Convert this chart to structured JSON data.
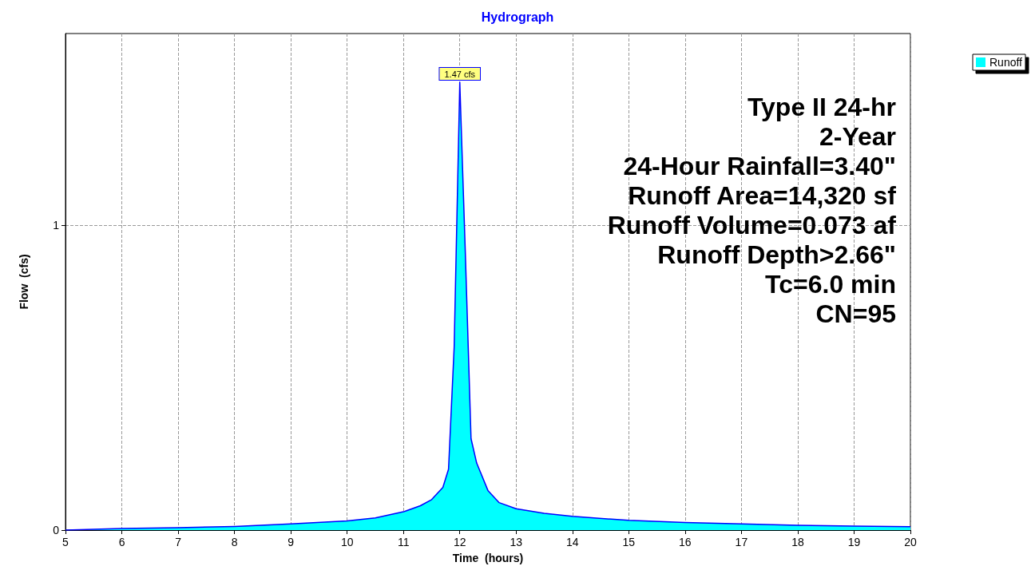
{
  "chart_data": {
    "type": "area",
    "title": "Hydrograph",
    "xlabel": "Time  (hours)",
    "ylabel": "Flow  (cfs)",
    "x": [
      5,
      6,
      7,
      8,
      9,
      10,
      10.5,
      11,
      11.3,
      11.5,
      11.7,
      11.8,
      11.9,
      12,
      12.1,
      12.2,
      12.3,
      12.5,
      12.7,
      13,
      13.5,
      14,
      15,
      16,
      17,
      18,
      19,
      20
    ],
    "series": [
      {
        "name": "Runoff",
        "color": "#00ffff",
        "values": [
          0.0,
          0.005,
          0.008,
          0.012,
          0.02,
          0.03,
          0.04,
          0.06,
          0.08,
          0.1,
          0.14,
          0.2,
          0.6,
          1.47,
          0.9,
          0.3,
          0.22,
          0.13,
          0.09,
          0.07,
          0.055,
          0.045,
          0.032,
          0.025,
          0.02,
          0.016,
          0.013,
          0.011
        ]
      }
    ],
    "xlim": [
      5,
      20
    ],
    "xticks": [
      5,
      6,
      7,
      8,
      9,
      10,
      11,
      12,
      13,
      14,
      15,
      16,
      17,
      18,
      19,
      20
    ],
    "ylim": [
      0,
      1.63
    ],
    "yticks": [
      0,
      1
    ],
    "grid": true,
    "legend": "top right",
    "marker": "none",
    "annotations": [
      {
        "text": "1.47 cfs",
        "x": 12,
        "y": 1.47
      },
      "Type II 24-hr",
      "2-Year",
      "24-Hour Rainfall=3.40\"",
      "Runoff Area=14,320 sf",
      "Runoff Volume=0.073 af",
      "Runoff Depth>2.66\"",
      "Tc=6.0 min",
      "CN=95"
    ]
  }
}
